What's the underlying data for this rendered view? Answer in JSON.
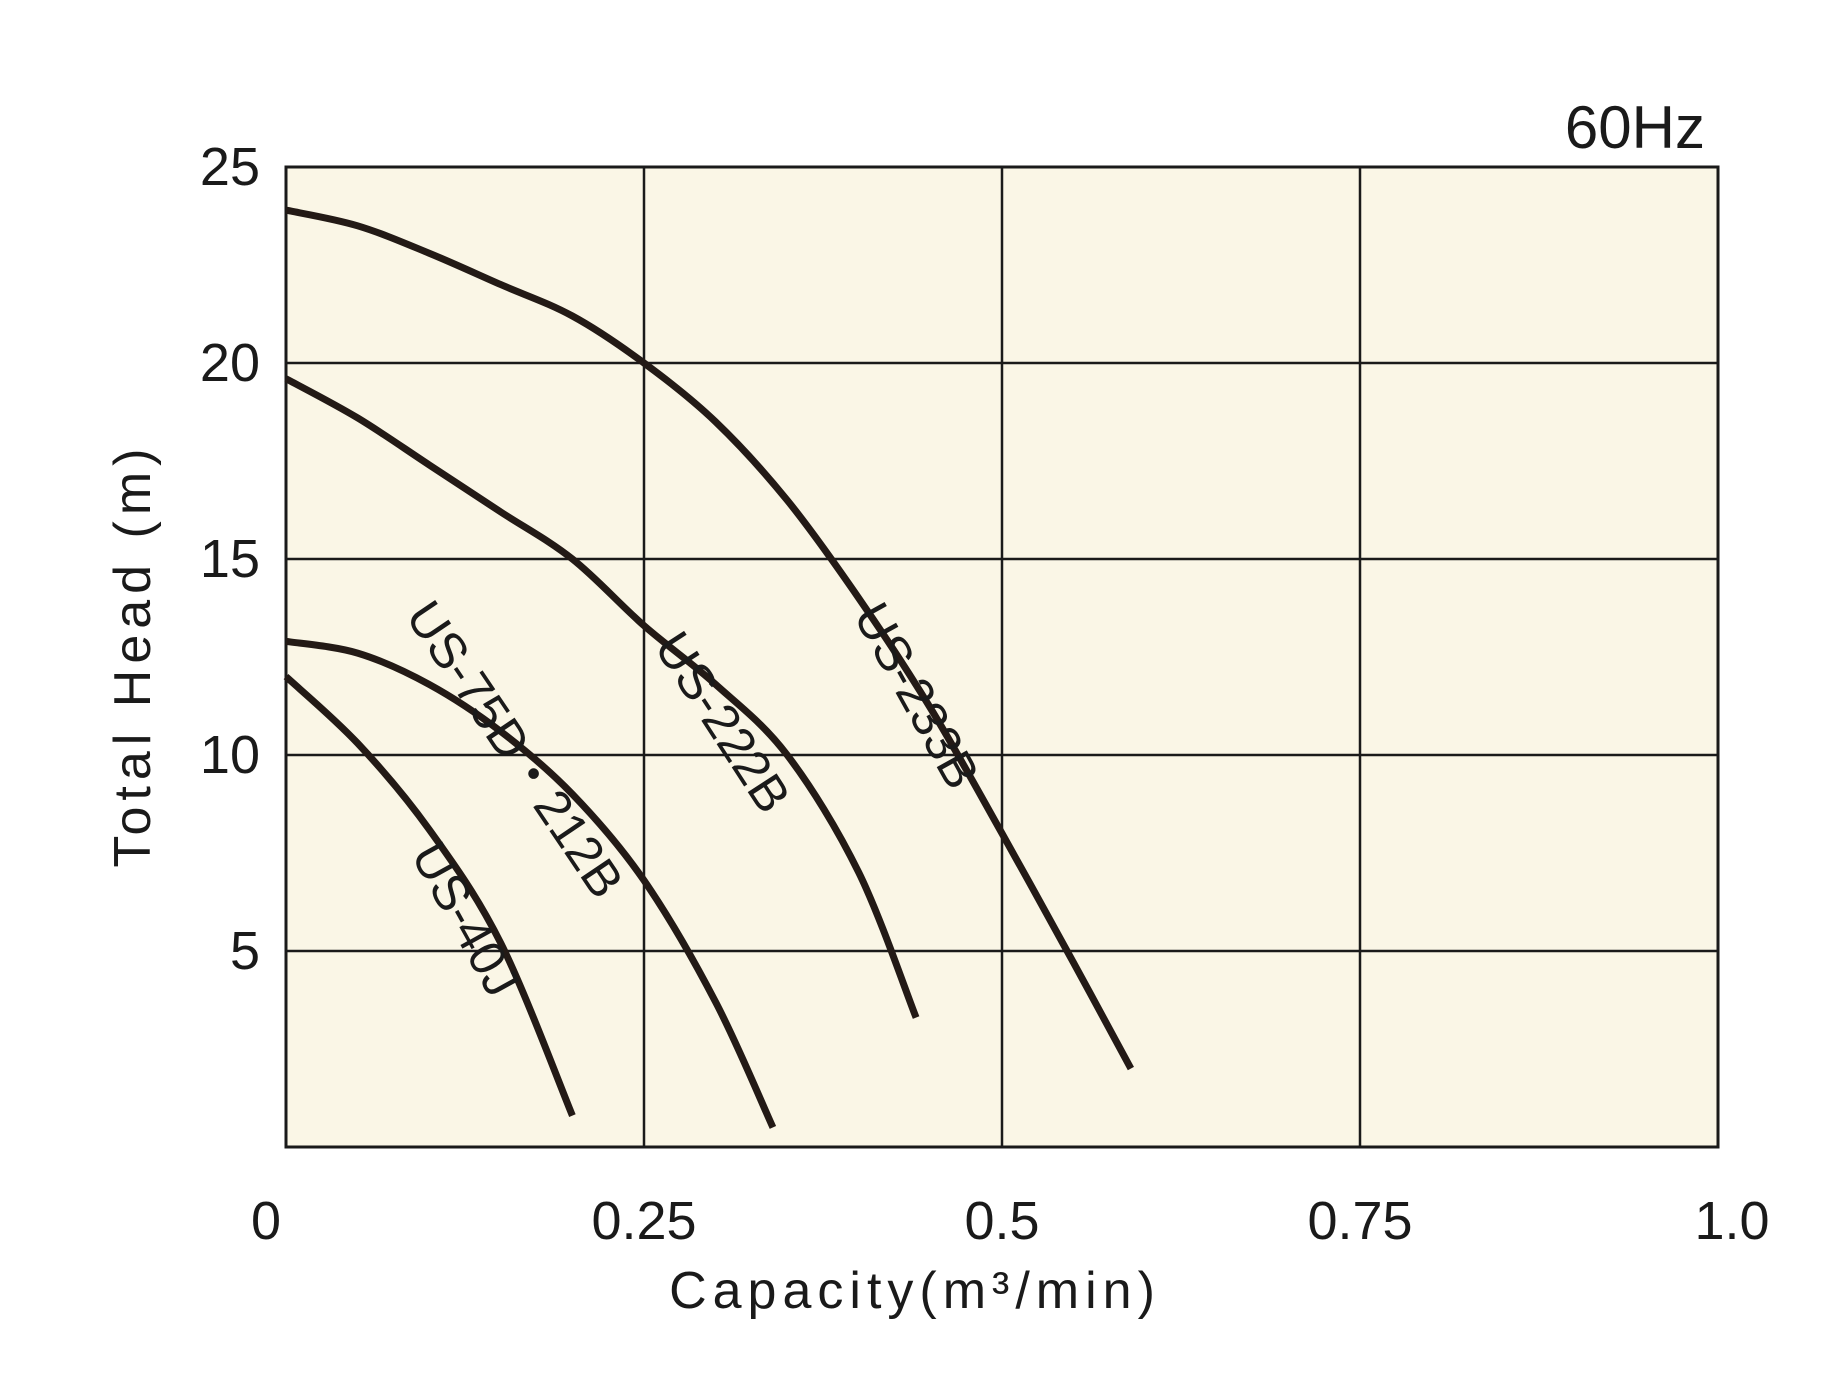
{
  "chart_data": {
    "type": "line",
    "frequency_label": "60Hz",
    "xlabel": "Capacity(m³/min)",
    "ylabel": "Total Head (m)",
    "xlim": [
      0,
      1.0
    ],
    "ylim": [
      0,
      25
    ],
    "x_ticks": [
      "0",
      "0.25",
      "0.5",
      "0.75",
      "1.0"
    ],
    "x_tick_values": [
      0,
      0.25,
      0.5,
      0.75,
      1.0
    ],
    "y_ticks": [
      "5",
      "10",
      "15",
      "20",
      "25"
    ],
    "y_tick_values": [
      5,
      10,
      15,
      20,
      25
    ],
    "grid": true,
    "plot_background": "#faf6e6",
    "line_color": "#231a16",
    "series": [
      {
        "name": "US-233B",
        "x": [
          0,
          0.05,
          0.1,
          0.15,
          0.2,
          0.25,
          0.3,
          0.35,
          0.4,
          0.45,
          0.5,
          0.55,
          0.59
        ],
        "y": [
          23.9,
          23.5,
          22.8,
          22.0,
          21.2,
          20.0,
          18.5,
          16.5,
          14.0,
          11.2,
          8.0,
          4.7,
          2.0
        ]
      },
      {
        "name": "US-222B",
        "x": [
          0,
          0.05,
          0.1,
          0.15,
          0.2,
          0.25,
          0.3,
          0.35,
          0.4,
          0.44
        ],
        "y": [
          19.6,
          18.6,
          17.4,
          16.2,
          15.0,
          13.3,
          11.8,
          10.0,
          7.0,
          3.3
        ]
      },
      {
        "name": "US-75D・212B",
        "x": [
          0,
          0.05,
          0.1,
          0.15,
          0.2,
          0.25,
          0.3,
          0.34
        ],
        "y": [
          12.9,
          12.6,
          11.8,
          10.6,
          9.0,
          6.8,
          3.7,
          0.5
        ]
      },
      {
        "name": "US-40J",
        "x": [
          0,
          0.05,
          0.1,
          0.15,
          0.2
        ],
        "y": [
          12.0,
          10.3,
          8.1,
          5.2,
          0.8
        ]
      }
    ]
  }
}
